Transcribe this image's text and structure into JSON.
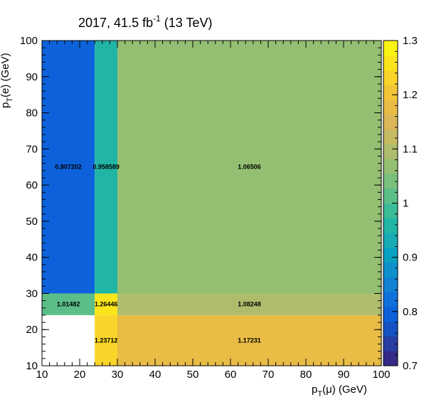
{
  "chart_data": {
    "type": "heatmap",
    "title": "2017, 41.5 fb",
    "title_sup": "-1",
    "title_suffix": " (13 TeV)",
    "xlabel": {
      "main": "p",
      "sub": "T",
      "rest": "(μ) (GeV)"
    },
    "ylabel": {
      "main": "p",
      "sub": "T",
      "rest": "(e) (GeV)"
    },
    "xlim": [
      10,
      100
    ],
    "ylim": [
      10,
      100
    ],
    "x_ticks": [
      10,
      20,
      30,
      40,
      50,
      60,
      70,
      80,
      90,
      100
    ],
    "y_ticks": [
      10,
      20,
      30,
      40,
      50,
      60,
      70,
      80,
      90,
      100
    ],
    "x_edges": [
      10,
      24,
      30,
      100
    ],
    "y_edges": [
      10,
      24,
      30,
      100
    ],
    "cells": [
      {
        "x_bin": 0,
        "y_bin": 0,
        "value": null,
        "label": ""
      },
      {
        "x_bin": 1,
        "y_bin": 0,
        "value": 1.23712,
        "label": "1.23712"
      },
      {
        "x_bin": 2,
        "y_bin": 0,
        "value": 1.17231,
        "label": "1.17231"
      },
      {
        "x_bin": 0,
        "y_bin": 1,
        "value": 1.01482,
        "label": "1.01482"
      },
      {
        "x_bin": 1,
        "y_bin": 1,
        "value": 1.26446,
        "label": "1.26446"
      },
      {
        "x_bin": 2,
        "y_bin": 1,
        "value": 1.08248,
        "label": "1.08248"
      },
      {
        "x_bin": 0,
        "y_bin": 2,
        "value": 0.807202,
        "label": "0.807202"
      },
      {
        "x_bin": 1,
        "y_bin": 2,
        "value": 0.958589,
        "label": "0.958589"
      },
      {
        "x_bin": 2,
        "y_bin": 2,
        "value": 1.06506,
        "label": "1.06506"
      }
    ],
    "colorbar": {
      "zlim": [
        0.7,
        1.3
      ],
      "ticks": [
        0.7,
        0.8,
        0.9,
        1,
        1.1,
        1.2,
        1.3
      ],
      "tick_labels": [
        "0.7",
        "0.8",
        "0.9",
        "1",
        "1.1",
        "1.2",
        "1.3"
      ],
      "palette": [
        "#352a87",
        "#283ea3",
        "#1552c3",
        "#0d62db",
        "#0f72dc",
        "#1181d4",
        "#0d91cc",
        "#0aa0c1",
        "#18abb3",
        "#21b5a5",
        "#3bbc96",
        "#5bbe88",
        "#78c07b",
        "#94bf72",
        "#adbd6c",
        "#c5bb62",
        "#dcb757",
        "#e8bc45",
        "#f3c536",
        "#f8d528",
        "#fae51c",
        "#fcf414"
      ]
    },
    "grid": false,
    "legend": "none"
  }
}
